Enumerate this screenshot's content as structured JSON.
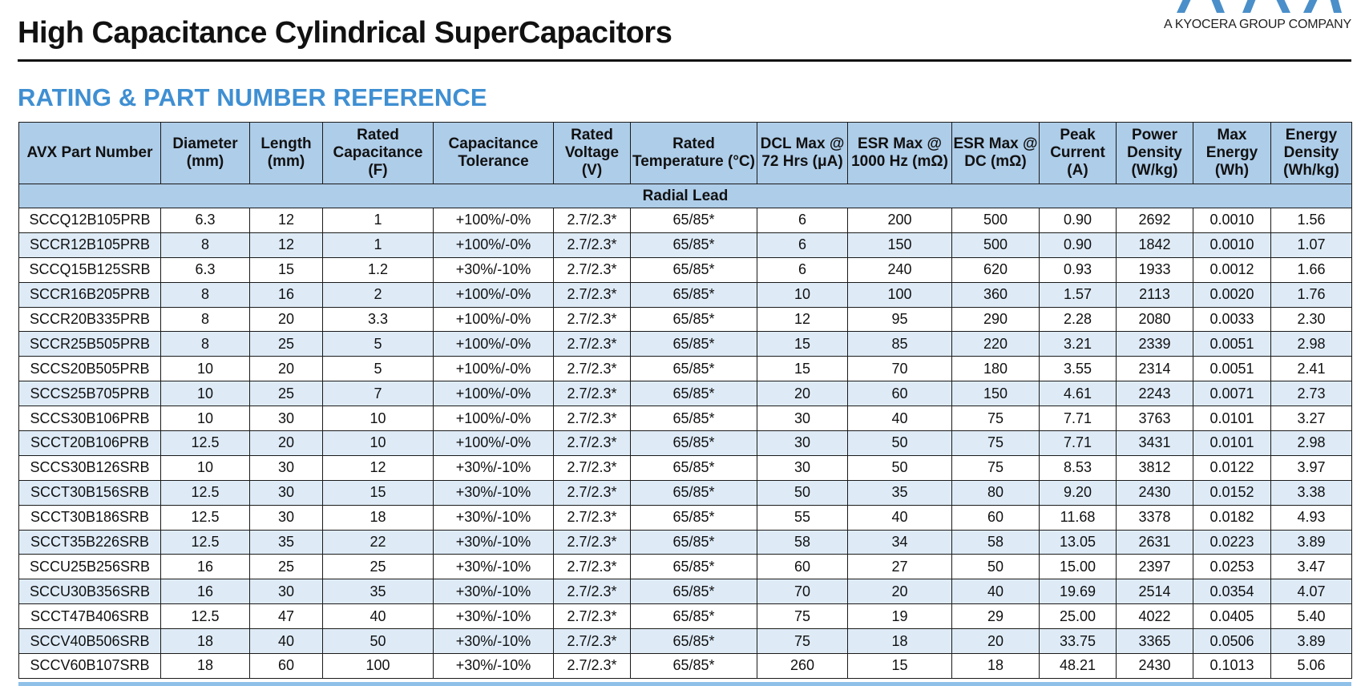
{
  "header": {
    "title": "High Capacitance Cylindrical SuperCapacitors",
    "logo_tagline": "A KYOCERA GROUP COMPANY"
  },
  "section": {
    "title": "RATING & PART NUMBER REFERENCE"
  },
  "table": {
    "columns": [
      "AVX Part Number",
      "Diameter (mm)",
      "Length (mm)",
      "Rated Capacitance (F)",
      "Capacitance Tolerance",
      "Rated Voltage (V)",
      "Rated Temperature (°C)",
      "DCL Max @ 72 Hrs (μA)",
      "ESR Max @ 1000 Hz (mΩ)",
      "ESR Max @ DC (mΩ)",
      "Peak Current (A)",
      "Power Density (W/kg)",
      "Max Energy (Wh)",
      "Energy Density (Wh/kg)"
    ],
    "group_label": "Radial Lead",
    "rows": [
      [
        "SCCQ12B105PRB",
        "6.3",
        "12",
        "1",
        "+100%/-0%",
        "2.7/2.3*",
        "65/85*",
        "6",
        "200",
        "500",
        "0.90",
        "2692",
        "0.0010",
        "1.56"
      ],
      [
        "SCCR12B105PRB",
        "8",
        "12",
        "1",
        "+100%/-0%",
        "2.7/2.3*",
        "65/85*",
        "6",
        "150",
        "500",
        "0.90",
        "1842",
        "0.0010",
        "1.07"
      ],
      [
        "SCCQ15B125SRB",
        "6.3",
        "15",
        "1.2",
        "+30%/-10%",
        "2.7/2.3*",
        "65/85*",
        "6",
        "240",
        "620",
        "0.93",
        "1933",
        "0.0012",
        "1.66"
      ],
      [
        "SCCR16B205PRB",
        "8",
        "16",
        "2",
        "+100%/-0%",
        "2.7/2.3*",
        "65/85*",
        "10",
        "100",
        "360",
        "1.57",
        "2113",
        "0.0020",
        "1.76"
      ],
      [
        "SCCR20B335PRB",
        "8",
        "20",
        "3.3",
        "+100%/-0%",
        "2.7/2.3*",
        "65/85*",
        "12",
        "95",
        "290",
        "2.28",
        "2080",
        "0.0033",
        "2.30"
      ],
      [
        "SCCR25B505PRB",
        "8",
        "25",
        "5",
        "+100%/-0%",
        "2.7/2.3*",
        "65/85*",
        "15",
        "85",
        "220",
        "3.21",
        "2339",
        "0.0051",
        "2.98"
      ],
      [
        "SCCS20B505PRB",
        "10",
        "20",
        "5",
        "+100%/-0%",
        "2.7/2.3*",
        "65/85*",
        "15",
        "70",
        "180",
        "3.55",
        "2314",
        "0.0051",
        "2.41"
      ],
      [
        "SCCS25B705PRB",
        "10",
        "25",
        "7",
        "+100%/-0%",
        "2.7/2.3*",
        "65/85*",
        "20",
        "60",
        "150",
        "4.61",
        "2243",
        "0.0071",
        "2.73"
      ],
      [
        "SCCS30B106PRB",
        "10",
        "30",
        "10",
        "+100%/-0%",
        "2.7/2.3*",
        "65/85*",
        "30",
        "40",
        "75",
        "7.71",
        "3763",
        "0.0101",
        "3.27"
      ],
      [
        "SCCT20B106PRB",
        "12.5",
        "20",
        "10",
        "+100%/-0%",
        "2.7/2.3*",
        "65/85*",
        "30",
        "50",
        "75",
        "7.71",
        "3431",
        "0.0101",
        "2.98"
      ],
      [
        "SCCS30B126SRB",
        "10",
        "30",
        "12",
        "+30%/-10%",
        "2.7/2.3*",
        "65/85*",
        "30",
        "50",
        "75",
        "8.53",
        "3812",
        "0.0122",
        "3.97"
      ],
      [
        "SCCT30B156SRB",
        "12.5",
        "30",
        "15",
        "+30%/-10%",
        "2.7/2.3*",
        "65/85*",
        "50",
        "35",
        "80",
        "9.20",
        "2430",
        "0.0152",
        "3.38"
      ],
      [
        "SCCT30B186SRB",
        "12.5",
        "30",
        "18",
        "+30%/-10%",
        "2.7/2.3*",
        "65/85*",
        "55",
        "40",
        "60",
        "11.68",
        "3378",
        "0.0182",
        "4.93"
      ],
      [
        "SCCT35B226SRB",
        "12.5",
        "35",
        "22",
        "+30%/-10%",
        "2.7/2.3*",
        "65/85*",
        "58",
        "34",
        "58",
        "13.05",
        "2631",
        "0.0223",
        "3.89"
      ],
      [
        "SCCU25B256SRB",
        "16",
        "25",
        "25",
        "+30%/-10%",
        "2.7/2.3*",
        "65/85*",
        "60",
        "27",
        "50",
        "15.00",
        "2397",
        "0.0253",
        "3.47"
      ],
      [
        "SCCU30B356SRB",
        "16",
        "30",
        "35",
        "+30%/-10%",
        "2.7/2.3*",
        "65/85*",
        "70",
        "20",
        "40",
        "19.69",
        "2514",
        "0.0354",
        "4.07"
      ],
      [
        "SCCT47B406SRB",
        "12.5",
        "47",
        "40",
        "+30%/-10%",
        "2.7/2.3*",
        "65/85*",
        "75",
        "19",
        "29",
        "25.00",
        "4022",
        "0.0405",
        "5.40"
      ],
      [
        "SCCV40B506SRB",
        "18",
        "40",
        "50",
        "+30%/-10%",
        "2.7/2.3*",
        "65/85*",
        "75",
        "18",
        "20",
        "33.75",
        "3365",
        "0.0506",
        "3.89"
      ],
      [
        "SCCV60B107SRB",
        "18",
        "60",
        "100",
        "+30%/-10%",
        "2.7/2.3*",
        "65/85*",
        "260",
        "15",
        "18",
        "48.21",
        "2430",
        "0.1013",
        "5.06"
      ]
    ]
  },
  "colors": {
    "accent": "#3f8fd2",
    "header_fill": "#aecde9",
    "stripe_fill": "#deebf7",
    "logo_blue": "#4a8fc9"
  }
}
